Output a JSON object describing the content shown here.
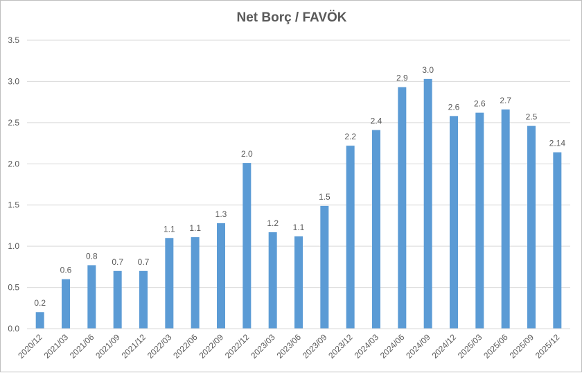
{
  "chart_data": {
    "type": "bar",
    "title": "Net Borç / FAVÖK",
    "xlabel": "",
    "ylabel": "",
    "ylim": [
      0,
      3.5
    ],
    "yticks": [
      "0.0",
      "0.5",
      "1.0",
      "1.5",
      "2.0",
      "2.5",
      "3.0",
      "3.5"
    ],
    "grid": true,
    "legend": "none",
    "bar_color": "#5b9bd5",
    "categories": [
      "2020/12",
      "2021/03",
      "2021/06",
      "2021/09",
      "2021/12",
      "2022/03",
      "2022/06",
      "2022/09",
      "2022/12",
      "2023/03",
      "2023/06",
      "2023/09",
      "2023/12",
      "2024/03",
      "2024/06",
      "2024/09",
      "2024/12",
      "2025/03",
      "2025/06",
      "2025/09",
      "2025/12"
    ],
    "values": [
      0.2,
      0.6,
      0.77,
      0.7,
      0.7,
      1.1,
      1.11,
      1.28,
      2.01,
      1.17,
      1.12,
      1.49,
      2.22,
      2.41,
      2.93,
      3.03,
      2.58,
      2.62,
      2.66,
      2.46,
      2.14
    ],
    "data_labels": [
      "0.2",
      "0.6",
      "0.8",
      "0.7",
      "0.7",
      "1.1",
      "1.1",
      "1.3",
      "2.0",
      "1.2",
      "1.1",
      "1.5",
      "2.2",
      "2.4",
      "2.9",
      "3.0",
      "2.6",
      "2.6",
      "2.7",
      "2.5",
      "2.14"
    ]
  }
}
